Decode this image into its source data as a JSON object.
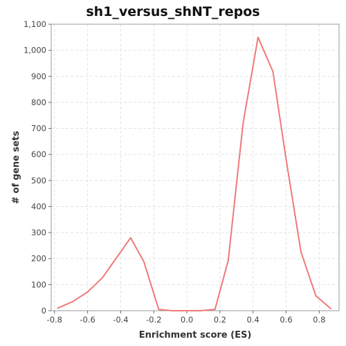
{
  "chart_data": {
    "type": "line",
    "title": "sh1_versus_shNT_repos",
    "xlabel": "Enrichment score (ES)",
    "ylabel": "# of gene sets",
    "xlim": [
      -0.82,
      0.92
    ],
    "ylim": [
      0,
      1100
    ],
    "x_ticks": [
      -0.8,
      -0.6,
      -0.4,
      -0.2,
      0.0,
      0.2,
      0.4,
      0.6,
      0.8
    ],
    "x_tick_labels": [
      "-0.8",
      "-0.6",
      "-0.4",
      "-0.2",
      "0.0",
      "0.2",
      "0.4",
      "0.6",
      "0.8"
    ],
    "y_ticks": [
      0,
      100,
      200,
      300,
      400,
      500,
      600,
      700,
      800,
      900,
      1000,
      1100
    ],
    "y_tick_labels": [
      "0",
      "100",
      "200",
      "300",
      "400",
      "500",
      "600",
      "700",
      "800",
      "900",
      "1,000",
      "1,100"
    ],
    "grid": true,
    "legend": "none",
    "series": [
      {
        "color": "#f07878",
        "points": [
          {
            "x": -0.78,
            "y": 10
          },
          {
            "x": -0.69,
            "y": 35
          },
          {
            "x": -0.6,
            "y": 72
          },
          {
            "x": -0.51,
            "y": 127
          },
          {
            "x": -0.34,
            "y": 280
          },
          {
            "x": -0.26,
            "y": 188
          },
          {
            "x": -0.17,
            "y": 5
          },
          {
            "x": -0.09,
            "y": 0
          },
          {
            "x": 0.0,
            "y": 0
          },
          {
            "x": 0.08,
            "y": 0
          },
          {
            "x": 0.17,
            "y": 5
          },
          {
            "x": 0.25,
            "y": 193
          },
          {
            "x": 0.34,
            "y": 720
          },
          {
            "x": 0.43,
            "y": 1050
          },
          {
            "x": 0.52,
            "y": 918
          },
          {
            "x": 0.6,
            "y": 580
          },
          {
            "x": 0.69,
            "y": 225
          },
          {
            "x": 0.78,
            "y": 57
          },
          {
            "x": 0.87,
            "y": 8
          }
        ]
      }
    ]
  }
}
